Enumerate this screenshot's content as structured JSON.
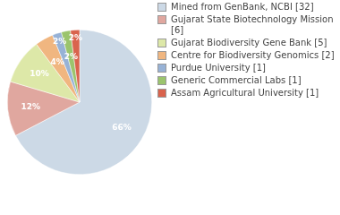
{
  "chart_data": {
    "type": "pie",
    "categories": [
      "Mined from GenBank, NCBI [32]",
      "Gujarat State Biotechnology Mission [6]",
      "Gujarat Biodiversity Gene Bank [5]",
      "Centre for Biodiversity Genomics [2]",
      "Purdue University [1]",
      "Generic Commercial Labs [1]",
      "Assam Agricultural University [1]"
    ],
    "values": [
      66,
      12,
      10,
      4,
      2,
      2,
      2
    ],
    "value_labels": [
      "66%",
      "12%",
      "10%",
      "4%",
      "2%",
      "2%",
      "2%"
    ],
    "data_labels": true,
    "colors": [
      "#ccd9e6",
      "#e0a79f",
      "#dde8a8",
      "#f0b680",
      "#97b2d6",
      "#9bc46d",
      "#d9634d"
    ],
    "legend": "right"
  }
}
